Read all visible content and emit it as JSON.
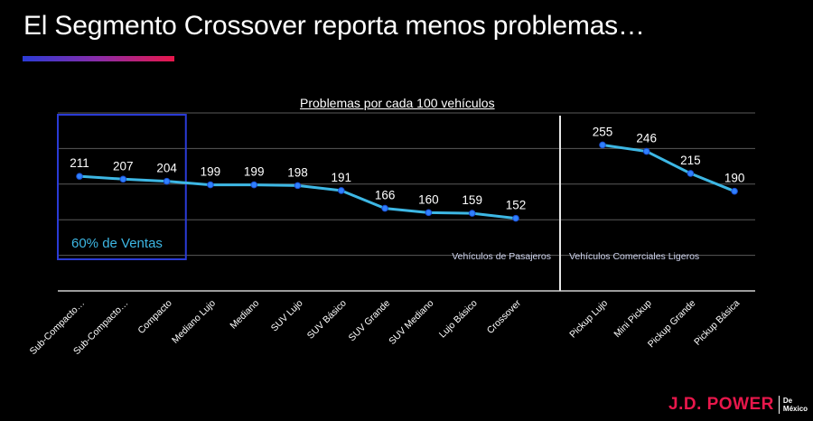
{
  "title": "El Segmento Crossover reporta menos problemas…",
  "brand": {
    "logo_main": "J.D. POWER",
    "logo_sub_1": "De",
    "logo_sub_2": "México",
    "accent": "#e8174b"
  },
  "chart_data": {
    "type": "line",
    "title": "Problemas por cada 100 vehículos",
    "line_color": "#3db7e4",
    "point_color": "#2f80ff",
    "groups": [
      {
        "label": "Vehículos de Pasajeros",
        "categories": [
          "Sub-Compacto…",
          "Sub-Compacto…",
          "Compacto",
          "Mediano Lujo",
          "Mediano",
          "SUV Lujo",
          "SUV Básico",
          "SUV Grande",
          "SUV Mediano",
          "Lujo Básico",
          "Crossover"
        ],
        "values": [
          211,
          207,
          204,
          199,
          199,
          198,
          191,
          166,
          160,
          159,
          152
        ]
      },
      {
        "label": "Vehículos Comerciales Ligeros",
        "categories": [
          "Pickup Lujo",
          "Mini Pickup",
          "Pickup Grande",
          "Pickup Básica"
        ],
        "values": [
          255,
          246,
          215,
          190
        ]
      }
    ],
    "highlight": {
      "label": "60% de Ventas",
      "categories_covered": 3,
      "color": "#2a3bd6"
    },
    "ylim": [
      50,
      300
    ],
    "grid": true
  }
}
